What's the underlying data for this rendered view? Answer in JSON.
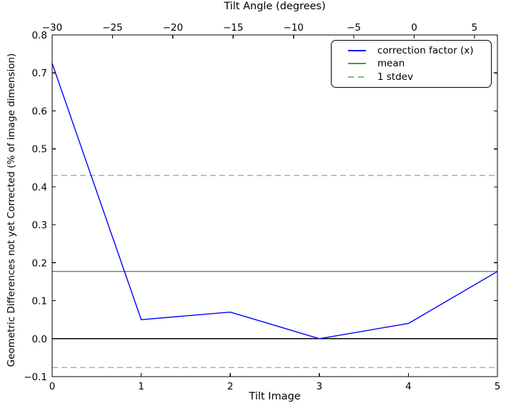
{
  "chart_data": {
    "type": "line",
    "title": "Tilt Angle (degrees)",
    "grid": false,
    "legend_position": "upper right",
    "axes": {
      "x_bottom": {
        "label": "Tilt Image",
        "min": 0,
        "max": 5,
        "ticks": [
          0,
          1,
          2,
          3,
          4,
          5
        ]
      },
      "x_top": {
        "label": "Tilt Angle (degrees)",
        "min": -30,
        "max": 6.9,
        "ticks": [
          -30,
          -25,
          -20,
          -15,
          -10,
          -5,
          0,
          5
        ]
      },
      "y": {
        "label": "Geometric Differences not yet Corrected (% of image dimension)",
        "min": -0.1,
        "max": 0.8,
        "ticks": [
          0.8,
          0.7,
          0.6,
          0.5,
          0.4,
          0.3,
          0.2,
          0.1,
          0.0,
          -0.1
        ]
      }
    },
    "x": [
      0,
      1,
      2,
      3,
      4,
      5
    ],
    "series": [
      {
        "name": "correction factor (x)",
        "type": "line",
        "color": "#0000ff",
        "dash": "solid",
        "values": [
          0.725,
          0.05,
          0.07,
          0.0,
          0.04,
          0.177
        ]
      },
      {
        "name": "mean",
        "type": "hline",
        "color": "#3c9e3c",
        "dash": "solid",
        "values": [
          0.177
        ]
      },
      {
        "name": "1 stdev",
        "type": "hline",
        "color": "#74c476",
        "dash": "dashed",
        "values": [
          0.43,
          -0.076
        ]
      }
    ],
    "zero_line": {
      "value": 0.0,
      "color": "#000000"
    },
    "mean": 0.177,
    "stdev": 0.253
  },
  "colors": {
    "background": "#ffffff",
    "axis": "#000000"
  }
}
